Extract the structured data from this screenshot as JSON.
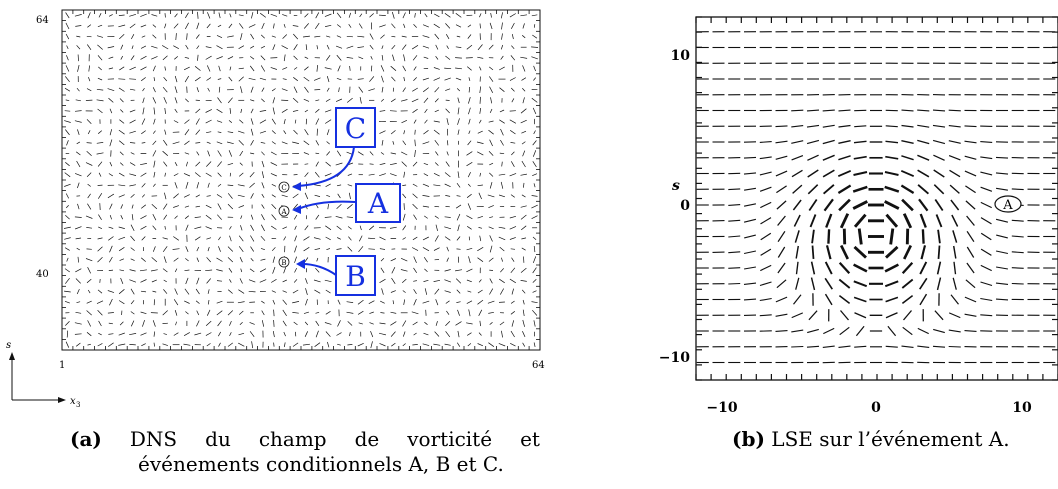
{
  "figure_a": {
    "x_ticks": {
      "min": "1",
      "max": "64"
    },
    "y_ticks": {
      "top": "64",
      "mid": "40"
    },
    "axis_s": "s",
    "axis_x": "x",
    "axis_x_sub": "3",
    "events": [
      {
        "label": "C"
      },
      {
        "label": "A"
      },
      {
        "label": "B"
      }
    ],
    "caption_tag": "(a)",
    "caption_line1": [
      "DNS",
      "du",
      "champ",
      "de",
      "vorticité",
      "et"
    ],
    "caption_line2": "événements conditionnels A, B et C."
  },
  "figure_b": {
    "y_axis_label": "s",
    "y_ticks": [
      "10",
      "0",
      "−10"
    ],
    "x_ticks": [
      "−10",
      "0",
      "10"
    ],
    "event_marker": "A",
    "caption_tag": "(b)",
    "caption_text": "LSE sur l’événement A."
  },
  "colors": {
    "callout": "#1530e0",
    "ink": "#111111"
  }
}
